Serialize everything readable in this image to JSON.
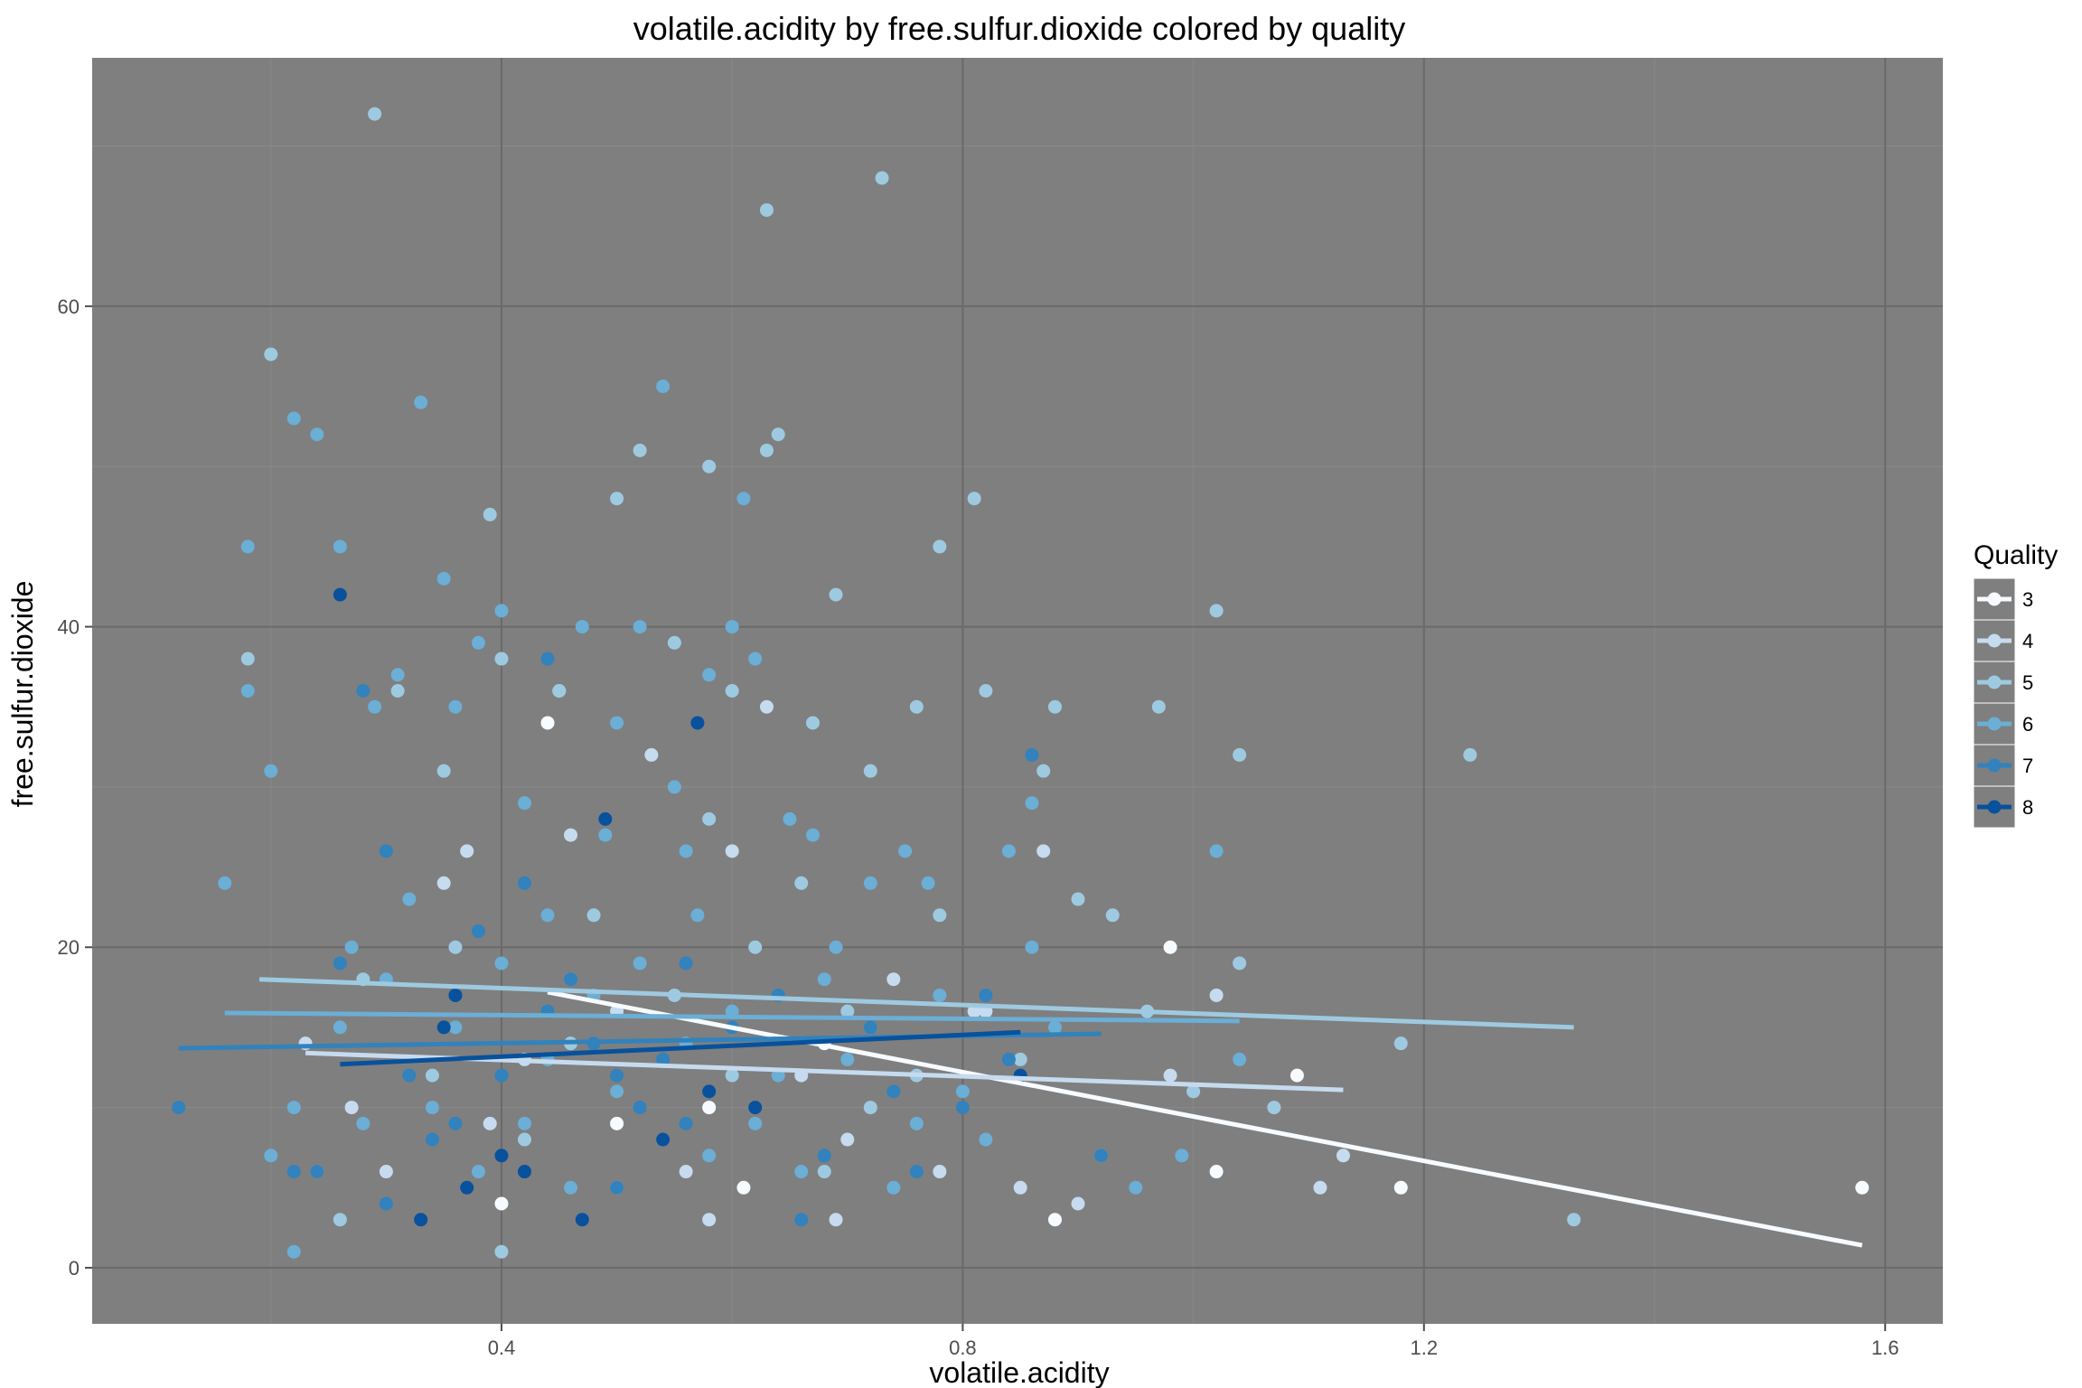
{
  "chart_data": {
    "type": "scatter",
    "title": "volatile.acidity by free.sulfur.dioxide colored by quality",
    "xlabel": "volatile.acidity",
    "ylabel": "free.sulfur.dioxide",
    "xlim": [
      0.045,
      1.65
    ],
    "ylim": [
      -3.5,
      75.5
    ],
    "x_ticks": [
      0.4,
      0.8,
      1.2,
      1.6
    ],
    "x_tick_labels": [
      "0.4",
      "0.8",
      "1.2",
      "1.6"
    ],
    "y_ticks": [
      0,
      20,
      40,
      60
    ],
    "y_tick_labels": [
      "0",
      "20",
      "40",
      "60"
    ],
    "grid": true,
    "background": "#7f7f7f",
    "legend": {
      "title": "Quality",
      "placement": "right"
    },
    "series": [
      {
        "name": "3",
        "color": "#f7fbff",
        "points": [
          [
            0.44,
            34
          ],
          [
            0.58,
            10
          ],
          [
            0.61,
            5
          ],
          [
            0.68,
            14
          ],
          [
            0.88,
            3
          ],
          [
            0.98,
            20
          ],
          [
            1.02,
            6
          ],
          [
            1.09,
            12
          ],
          [
            1.18,
            5
          ],
          [
            1.58,
            5
          ],
          [
            0.4,
            4
          ],
          [
            0.5,
            9
          ]
        ],
        "trend": [
          [
            0.44,
            17.2
          ],
          [
            1.58,
            1.4
          ]
        ]
      },
      {
        "name": "4",
        "color": "#c6dbef",
        "points": [
          [
            0.23,
            14
          ],
          [
            0.27,
            10
          ],
          [
            0.3,
            6
          ],
          [
            0.35,
            24
          ],
          [
            0.39,
            9
          ],
          [
            0.42,
            13
          ],
          [
            0.46,
            27
          ],
          [
            0.5,
            16
          ],
          [
            0.53,
            32
          ],
          [
            0.56,
            6
          ],
          [
            0.6,
            26
          ],
          [
            0.63,
            35
          ],
          [
            0.66,
            12
          ],
          [
            0.7,
            8
          ],
          [
            0.74,
            18
          ],
          [
            0.78,
            6
          ],
          [
            0.82,
            16
          ],
          [
            0.85,
            5
          ],
          [
            0.87,
            26
          ],
          [
            0.9,
            4
          ],
          [
            0.98,
            12
          ],
          [
            1.02,
            17
          ],
          [
            1.11,
            5
          ],
          [
            1.13,
            7
          ],
          [
            0.69,
            3
          ],
          [
            0.58,
            3
          ],
          [
            0.45,
            36
          ],
          [
            0.37,
            26
          ],
          [
            0.81,
            16
          ]
        ],
        "trend": [
          [
            0.23,
            13.4
          ],
          [
            1.13,
            11.1
          ]
        ]
      },
      {
        "name": "5",
        "color": "#9ecae1",
        "points": [
          [
            0.18,
            38
          ],
          [
            0.2,
            57
          ],
          [
            0.29,
            72
          ],
          [
            0.31,
            36
          ],
          [
            0.35,
            31
          ],
          [
            0.39,
            47
          ],
          [
            0.4,
            38
          ],
          [
            0.45,
            36
          ],
          [
            0.5,
            48
          ],
          [
            0.52,
            51
          ],
          [
            0.55,
            39
          ],
          [
            0.58,
            50
          ],
          [
            0.6,
            36
          ],
          [
            0.63,
            66
          ],
          [
            0.63,
            51
          ],
          [
            0.64,
            52
          ],
          [
            0.67,
            34
          ],
          [
            0.69,
            42
          ],
          [
            0.72,
            31
          ],
          [
            0.73,
            68
          ],
          [
            0.76,
            35
          ],
          [
            0.78,
            45
          ],
          [
            0.81,
            48
          ],
          [
            0.82,
            36
          ],
          [
            0.87,
            31
          ],
          [
            0.9,
            23
          ],
          [
            0.93,
            22
          ],
          [
            0.97,
            35
          ],
          [
            1.02,
            41
          ],
          [
            1.04,
            32
          ],
          [
            1.04,
            19
          ],
          [
            1.07,
            10
          ],
          [
            1.0,
            11
          ],
          [
            1.24,
            32
          ],
          [
            1.18,
            14
          ],
          [
            1.33,
            3
          ],
          [
            0.96,
            16
          ],
          [
            0.92,
            7
          ],
          [
            0.85,
            13
          ],
          [
            0.48,
            22
          ],
          [
            0.55,
            17
          ],
          [
            0.62,
            20
          ],
          [
            0.7,
            16
          ],
          [
            0.34,
            12
          ],
          [
            0.28,
            18
          ],
          [
            0.42,
            8
          ],
          [
            0.5,
            5
          ],
          [
            0.58,
            28
          ],
          [
            0.66,
            24
          ],
          [
            0.72,
            10
          ],
          [
            0.78,
            22
          ],
          [
            0.24,
            6
          ],
          [
            0.36,
            20
          ],
          [
            0.46,
            14
          ],
          [
            0.6,
            12
          ],
          [
            0.68,
            6
          ],
          [
            0.76,
            12
          ],
          [
            0.88,
            35
          ],
          [
            0.4,
            1
          ],
          [
            0.26,
            3
          ]
        ],
        "trend": [
          [
            0.19,
            18.0
          ],
          [
            1.33,
            15.0
          ]
        ]
      },
      {
        "name": "6",
        "color": "#6baed6",
        "points": [
          [
            0.16,
            24
          ],
          [
            0.18,
            45
          ],
          [
            0.18,
            36
          ],
          [
            0.2,
            31
          ],
          [
            0.22,
            53
          ],
          [
            0.24,
            52
          ],
          [
            0.26,
            45
          ],
          [
            0.27,
            20
          ],
          [
            0.29,
            35
          ],
          [
            0.31,
            37
          ],
          [
            0.33,
            54
          ],
          [
            0.35,
            43
          ],
          [
            0.36,
            35
          ],
          [
            0.38,
            39
          ],
          [
            0.4,
            41
          ],
          [
            0.42,
            29
          ],
          [
            0.44,
            22
          ],
          [
            0.46,
            18
          ],
          [
            0.47,
            40
          ],
          [
            0.49,
            27
          ],
          [
            0.5,
            34
          ],
          [
            0.52,
            40
          ],
          [
            0.54,
            55
          ],
          [
            0.55,
            30
          ],
          [
            0.56,
            26
          ],
          [
            0.57,
            22
          ],
          [
            0.58,
            37
          ],
          [
            0.6,
            40
          ],
          [
            0.61,
            48
          ],
          [
            0.62,
            38
          ],
          [
            0.65,
            28
          ],
          [
            0.67,
            27
          ],
          [
            0.69,
            20
          ],
          [
            0.72,
            24
          ],
          [
            0.75,
            26
          ],
          [
            0.77,
            24
          ],
          [
            0.8,
            11
          ],
          [
            0.84,
            26
          ],
          [
            0.86,
            20
          ],
          [
            0.88,
            15
          ],
          [
            0.92,
            7
          ],
          [
            0.95,
            5
          ],
          [
            0.99,
            7
          ],
          [
            1.02,
            26
          ],
          [
            1.04,
            13
          ],
          [
            0.22,
            1
          ],
          [
            0.2,
            7
          ],
          [
            0.3,
            18
          ],
          [
            0.34,
            10
          ],
          [
            0.38,
            6
          ],
          [
            0.42,
            9
          ],
          [
            0.46,
            5
          ],
          [
            0.5,
            11
          ],
          [
            0.54,
            8
          ],
          [
            0.58,
            7
          ],
          [
            0.62,
            9
          ],
          [
            0.66,
            6
          ],
          [
            0.7,
            13
          ],
          [
            0.74,
            5
          ],
          [
            0.78,
            17
          ],
          [
            0.82,
            8
          ],
          [
            0.26,
            15
          ],
          [
            0.32,
            23
          ],
          [
            0.36,
            15
          ],
          [
            0.44,
            13
          ],
          [
            0.48,
            17
          ],
          [
            0.52,
            19
          ],
          [
            0.56,
            14
          ],
          [
            0.6,
            16
          ],
          [
            0.64,
            12
          ],
          [
            0.68,
            18
          ],
          [
            0.72,
            15
          ],
          [
            0.76,
            9
          ],
          [
            0.22,
            10
          ],
          [
            0.28,
            9
          ],
          [
            0.4,
            19
          ],
          [
            0.86,
            29
          ]
        ],
        "trend": [
          [
            0.16,
            15.9
          ],
          [
            1.04,
            15.4
          ]
        ]
      },
      {
        "name": "7",
        "color": "#3182bd",
        "points": [
          [
            0.12,
            10
          ],
          [
            0.22,
            6
          ],
          [
            0.26,
            19
          ],
          [
            0.28,
            36
          ],
          [
            0.3,
            26
          ],
          [
            0.32,
            12
          ],
          [
            0.34,
            8
          ],
          [
            0.36,
            17
          ],
          [
            0.38,
            21
          ],
          [
            0.4,
            12
          ],
          [
            0.42,
            24
          ],
          [
            0.44,
            38
          ],
          [
            0.46,
            18
          ],
          [
            0.48,
            14
          ],
          [
            0.5,
            5
          ],
          [
            0.52,
            10
          ],
          [
            0.54,
            13
          ],
          [
            0.56,
            9
          ],
          [
            0.6,
            15
          ],
          [
            0.64,
            17
          ],
          [
            0.68,
            7
          ],
          [
            0.72,
            15
          ],
          [
            0.76,
            6
          ],
          [
            0.8,
            10
          ],
          [
            0.84,
            13
          ],
          [
            0.86,
            32
          ],
          [
            0.92,
            7
          ],
          [
            0.24,
            6
          ],
          [
            0.3,
            4
          ],
          [
            0.36,
            9
          ],
          [
            0.44,
            16
          ],
          [
            0.5,
            12
          ],
          [
            0.56,
            19
          ],
          [
            0.66,
            3
          ],
          [
            0.74,
            11
          ],
          [
            0.82,
            17
          ]
        ],
        "trend": [
          [
            0.12,
            13.7
          ],
          [
            0.92,
            14.6
          ]
        ]
      },
      {
        "name": "8",
        "color": "#08519c",
        "points": [
          [
            0.26,
            42
          ],
          [
            0.33,
            3
          ],
          [
            0.35,
            15
          ],
          [
            0.36,
            17
          ],
          [
            0.4,
            7
          ],
          [
            0.42,
            6
          ],
          [
            0.47,
            3
          ],
          [
            0.49,
            28
          ],
          [
            0.54,
            8
          ],
          [
            0.57,
            34
          ],
          [
            0.58,
            11
          ],
          [
            0.62,
            10
          ],
          [
            0.85,
            12
          ],
          [
            0.37,
            5
          ]
        ],
        "trend": [
          [
            0.26,
            12.7
          ],
          [
            0.85,
            14.7
          ]
        ]
      }
    ]
  }
}
